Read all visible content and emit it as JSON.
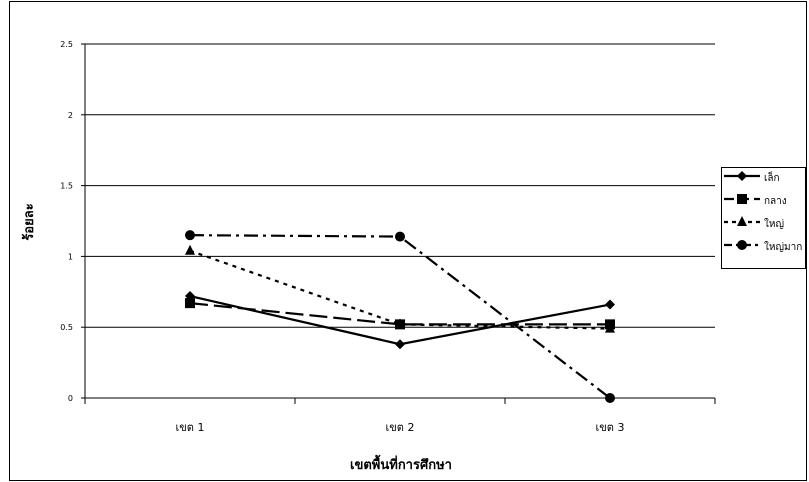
{
  "chart_data": {
    "type": "line",
    "title": "",
    "xlabel": "เขตพื้นที่การศึกษา",
    "ylabel": "ร้อยละ",
    "categories": [
      "เขต 1",
      "เขต 2",
      "เขต 3"
    ],
    "ylim": [
      0,
      2.5
    ],
    "yticks": [
      "0",
      "0.5",
      "1",
      "1.5",
      "2",
      "2.5"
    ],
    "grid": "horizontal",
    "legend_position": "right",
    "series": [
      {
        "name": "เล็ก",
        "values": [
          0.72,
          0.38,
          0.66
        ],
        "marker": "diamond",
        "dash": "solid",
        "color": "#000000"
      },
      {
        "name": "กลาง",
        "values": [
          0.67,
          0.52,
          0.52
        ],
        "marker": "square",
        "dash": "long-dash",
        "color": "#000000"
      },
      {
        "name": "ใหญ่",
        "values": [
          1.04,
          0.52,
          0.49
        ],
        "marker": "triangle",
        "dash": "dotted",
        "color": "#000000"
      },
      {
        "name": "ใหญ่มาก",
        "values": [
          1.15,
          1.14,
          0.0
        ],
        "marker": "circle",
        "dash": "dash-dot",
        "color": "#000000"
      }
    ]
  }
}
